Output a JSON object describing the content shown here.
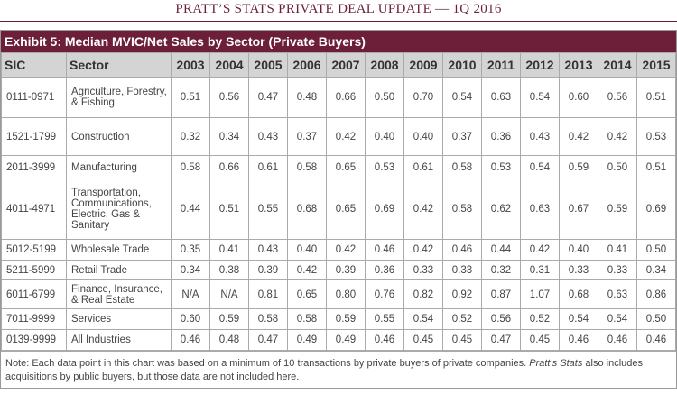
{
  "page_header": "PRATT’S STATS PRIVATE DEAL UPDATE — 1Q 2016",
  "exhibit_title": "Exhibit 5: Median MVIC/Net Sales by Sector (Private Buyers)",
  "columns": [
    "SIC",
    "Sector",
    "2003",
    "2004",
    "2005",
    "2006",
    "2007",
    "2008",
    "2009",
    "2010",
    "2011",
    "2012",
    "2013",
    "2014",
    "2015"
  ],
  "rows": [
    {
      "sic": "0111-0971",
      "sector": "Agriculture, Forestry, & Fishing",
      "values": [
        "0.51",
        "0.56",
        "0.47",
        "0.48",
        "0.66",
        "0.50",
        "0.70",
        "0.54",
        "0.63",
        "0.54",
        "0.60",
        "0.56",
        "0.51"
      ]
    },
    {
      "sic": "1521-1799",
      "sector": "Construction",
      "values": [
        "0.32",
        "0.34",
        "0.43",
        "0.37",
        "0.42",
        "0.40",
        "0.40",
        "0.37",
        "0.36",
        "0.43",
        "0.42",
        "0.42",
        "0.53"
      ]
    },
    {
      "sic": "2011-3999",
      "sector": "Manufacturing",
      "values": [
        "0.58",
        "0.66",
        "0.61",
        "0.58",
        "0.65",
        "0.53",
        "0.61",
        "0.58",
        "0.53",
        "0.54",
        "0.59",
        "0.50",
        "0.51"
      ]
    },
    {
      "sic": "4011-4971",
      "sector": "Transportation, Communications, Electric, Gas & Sanitary",
      "values": [
        "0.44",
        "0.51",
        "0.55",
        "0.68",
        "0.65",
        "0.69",
        "0.42",
        "0.58",
        "0.62",
        "0.63",
        "0.67",
        "0.59",
        "0.69"
      ]
    },
    {
      "sic": "5012-5199",
      "sector": "Wholesale Trade",
      "values": [
        "0.35",
        "0.41",
        "0.43",
        "0.40",
        "0.42",
        "0.46",
        "0.42",
        "0.46",
        "0.44",
        "0.42",
        "0.40",
        "0.41",
        "0.50"
      ]
    },
    {
      "sic": "5211-5999",
      "sector": "Retail Trade",
      "values": [
        "0.34",
        "0.38",
        "0.39",
        "0.42",
        "0.39",
        "0.36",
        "0.33",
        "0.33",
        "0.32",
        "0.31",
        "0.33",
        "0.33",
        "0.34"
      ]
    },
    {
      "sic": "6011-6799",
      "sector": "Finance, Insurance, & Real Estate",
      "values": [
        "N/A",
        "N/A",
        "0.81",
        "0.65",
        "0.80",
        "0.76",
        "0.82",
        "0.92",
        "0.87",
        "1.07",
        "0.68",
        "0.63",
        "0.86"
      ]
    },
    {
      "sic": "7011-9999",
      "sector": "Services",
      "values": [
        "0.60",
        "0.59",
        "0.58",
        "0.58",
        "0.59",
        "0.55",
        "0.54",
        "0.52",
        "0.56",
        "0.52",
        "0.54",
        "0.54",
        "0.50"
      ]
    },
    {
      "sic": "0139-9999",
      "sector": "All Industries",
      "values": [
        "0.46",
        "0.48",
        "0.47",
        "0.49",
        "0.49",
        "0.46",
        "0.45",
        "0.45",
        "0.47",
        "0.45",
        "0.46",
        "0.46",
        "0.46"
      ]
    }
  ],
  "note": {
    "prefix": "Note: Each data point in this chart was based on a minimum of 10 transactions by private buyers of private companies. ",
    "italic": "Pratt’s Stats",
    "suffix": " also includes acquisitions by public buyers, but those data are not included here."
  }
}
